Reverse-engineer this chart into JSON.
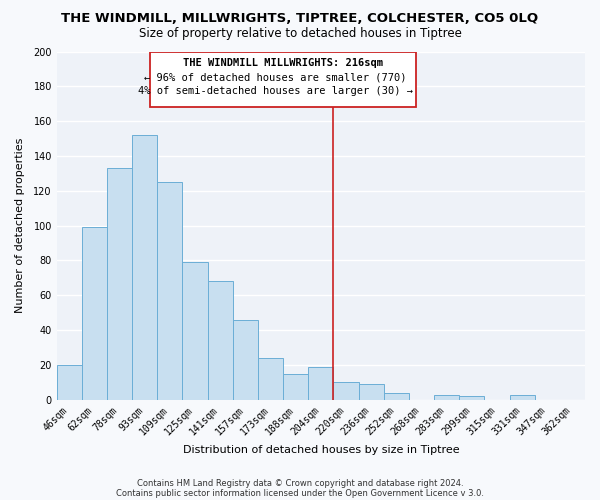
{
  "title": "THE WINDMILL, MILLWRIGHTS, TIPTREE, COLCHESTER, CO5 0LQ",
  "subtitle": "Size of property relative to detached houses in Tiptree",
  "xlabel": "Distribution of detached houses by size in Tiptree",
  "ylabel": "Number of detached properties",
  "bar_labels": [
    "46sqm",
    "62sqm",
    "78sqm",
    "93sqm",
    "109sqm",
    "125sqm",
    "141sqm",
    "157sqm",
    "173sqm",
    "188sqm",
    "204sqm",
    "220sqm",
    "236sqm",
    "252sqm",
    "268sqm",
    "283sqm",
    "299sqm",
    "315sqm",
    "331sqm",
    "347sqm",
    "362sqm"
  ],
  "bar_values": [
    20,
    99,
    133,
    152,
    125,
    79,
    68,
    46,
    24,
    15,
    19,
    10,
    9,
    4,
    0,
    3,
    2,
    0,
    3,
    0,
    0
  ],
  "bar_color": "#c8dff0",
  "bar_edge_color": "#6baed6",
  "vline_index": 11,
  "vline_color": "#cc2222",
  "ylim": [
    0,
    200
  ],
  "yticks": [
    0,
    20,
    40,
    60,
    80,
    100,
    120,
    140,
    160,
    180,
    200
  ],
  "annotation_title": "THE WINDMILL MILLWRIGHTS: 216sqm",
  "annotation_line1": "← 96% of detached houses are smaller (770)",
  "annotation_line2": "4% of semi-detached houses are larger (30) →",
  "footer1": "Contains HM Land Registry data © Crown copyright and database right 2024.",
  "footer2": "Contains public sector information licensed under the Open Government Licence v 3.0.",
  "bg_color": "#f7f9fc",
  "plot_bg_color": "#eef2f8",
  "grid_color": "#ffffff",
  "title_fontsize": 9.5,
  "subtitle_fontsize": 8.5,
  "axis_label_fontsize": 8,
  "tick_fontsize": 7,
  "ann_fontsize": 7.5
}
